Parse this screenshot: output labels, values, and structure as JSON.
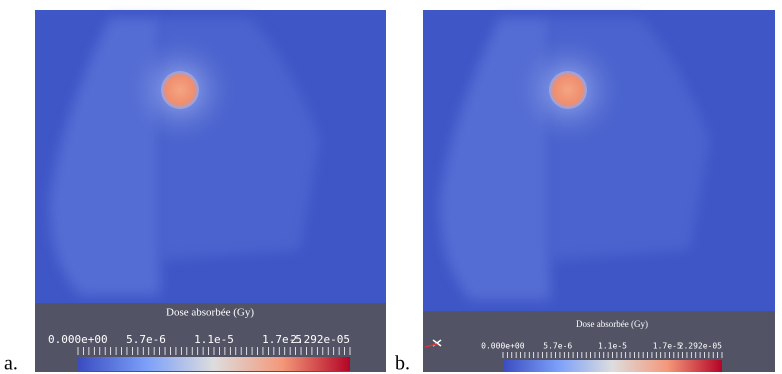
{
  "panels": [
    {
      "label": "a.",
      "colorbar": {
        "title": "Dose absorbée (Gy)",
        "tick_labels": [
          "0.000e+00",
          "5.7e-6",
          "1.1e-5",
          "1.7e-5",
          "2.292e-05"
        ]
      }
    },
    {
      "label": "b.",
      "colorbar": {
        "title": "Dose absorbée (Gy)",
        "tick_labels": [
          "0.000e+00",
          "5.7e-6",
          "1.1e-5",
          "1.7e-5",
          "2.292e-05"
        ]
      }
    }
  ]
}
